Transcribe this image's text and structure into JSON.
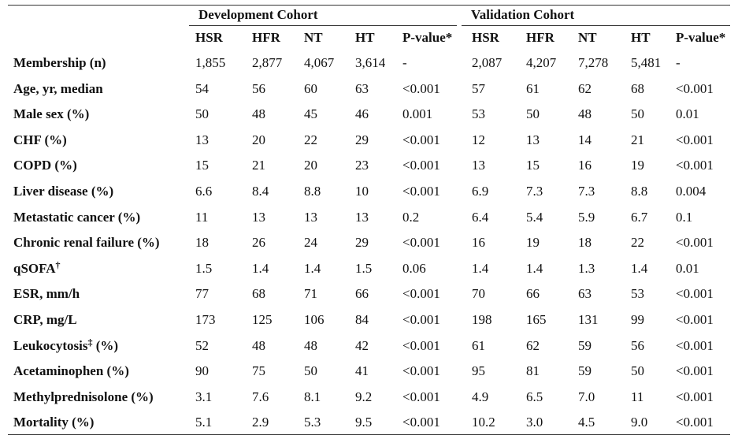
{
  "cohorts": {
    "development": "Development Cohort",
    "validation": "Validation Cohort"
  },
  "columns": [
    "HSR",
    "HFR",
    "NT",
    "HT",
    "P-value*",
    "HSR",
    "HFR",
    "NT",
    "HT",
    "P-value*"
  ],
  "rows": [
    {
      "label": "Membership (n)",
      "values": [
        "1,855",
        "2,877",
        "4,067",
        "3,614",
        "-",
        "2,087",
        "4,207",
        "7,278",
        "5,481",
        "-"
      ]
    },
    {
      "label": "Age, yr, median",
      "values": [
        "54",
        "56",
        "60",
        "63",
        "<0.001",
        "57",
        "61",
        "62",
        "68",
        "<0.001"
      ]
    },
    {
      "label": "Male sex (%)",
      "values": [
        "50",
        "48",
        "45",
        "46",
        "0.001",
        "53",
        "50",
        "48",
        "50",
        "0.01"
      ]
    },
    {
      "label": "CHF (%)",
      "values": [
        "13",
        "20",
        "22",
        "29",
        "<0.001",
        "12",
        "13",
        "14",
        "21",
        "<0.001"
      ]
    },
    {
      "label": "COPD (%)",
      "values": [
        "15",
        "21",
        "20",
        "23",
        "<0.001",
        "13",
        "15",
        "16",
        "19",
        "<0.001"
      ]
    },
    {
      "label": "Liver disease (%)",
      "values": [
        "6.6",
        "8.4",
        "8.8",
        "10",
        "<0.001",
        "6.9",
        "7.3",
        "7.3",
        "8.8",
        "0.004"
      ]
    },
    {
      "label": "Metastatic cancer (%)",
      "values": [
        "11",
        "13",
        "13",
        "13",
        "0.2",
        "6.4",
        "5.4",
        "5.9",
        "6.7",
        "0.1"
      ]
    },
    {
      "label": "Chronic renal failure (%)",
      "values": [
        "18",
        "26",
        "24",
        "29",
        "<0.001",
        "16",
        "19",
        "18",
        "22",
        "<0.001"
      ]
    },
    {
      "label": "qSOFA",
      "sup": "†",
      "values": [
        "1.5",
        "1.4",
        "1.4",
        "1.5",
        "0.06",
        "1.4",
        "1.4",
        "1.3",
        "1.4",
        "0.01"
      ]
    },
    {
      "label": "ESR, mm/h",
      "values": [
        "77",
        "68",
        "71",
        "66",
        "<0.001",
        "70",
        "66",
        "63",
        "53",
        "<0.001"
      ]
    },
    {
      "label": "CRP, mg/L",
      "values": [
        "173",
        "125",
        "106",
        "84",
        "<0.001",
        "198",
        "165",
        "131",
        "99",
        "<0.001"
      ]
    },
    {
      "label": "Leukocytosis",
      "sup": "‡",
      "suffix": " (%)",
      "values": [
        "52",
        "48",
        "48",
        "42",
        "<0.001",
        "61",
        "62",
        "59",
        "56",
        "<0.001"
      ]
    },
    {
      "label": "Acetaminophen (%)",
      "values": [
        "90",
        "75",
        "50",
        "41",
        "<0.001",
        "95",
        "81",
        "59",
        "50",
        "<0.001"
      ]
    },
    {
      "label": "Methylprednisolone (%)",
      "values": [
        "3.1",
        "7.6",
        "8.1",
        "9.2",
        "<0.001",
        "4.9",
        "6.5",
        "7.0",
        "11",
        "<0.001"
      ]
    },
    {
      "label": "Mortality (%)",
      "values": [
        "5.1",
        "2.9",
        "5.3",
        "9.5",
        "<0.001",
        "10.2",
        "3.0",
        "4.5",
        "9.0",
        "<0.001"
      ]
    }
  ]
}
